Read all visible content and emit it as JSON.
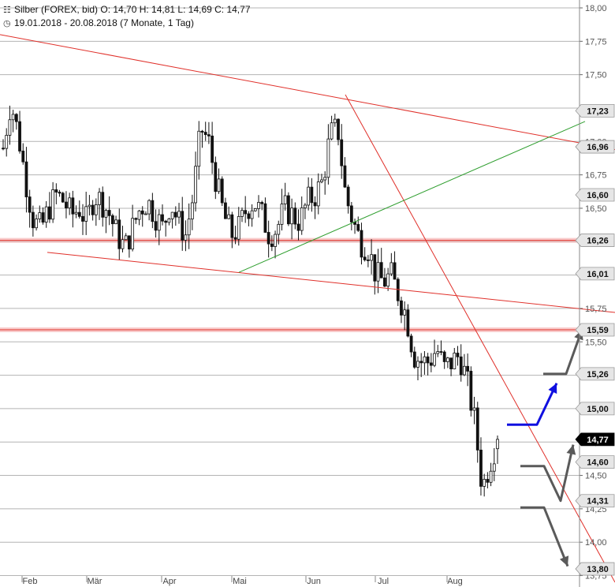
{
  "header": {
    "symbol_line": "Silber (FOREX, bid)  O: 14,70  H: 14,81  L: 14,69  C: 14,77",
    "range_line": "19.01.2018 - 20.08.2018  (7 Monate, 1 Tag)",
    "symbol_icon": "candlestick-icon",
    "range_icon": "clock-icon"
  },
  "colors": {
    "trendline": "#e0302a",
    "support_band": "#f2a0a0",
    "green_line": "#2e9e2e",
    "blue_arrow": "#1010e0",
    "gray_arrow": "#5a5a5a",
    "candle": "#111111",
    "grid": "#b4b4b4",
    "label_box": "#e6e6e6",
    "current_box": "#000000"
  },
  "chart_data": {
    "type": "candlestick",
    "title": "Silber (FOREX, bid)",
    "ylim": [
      13.7,
      18.0
    ],
    "y_axis_ticks": [
      "18,00",
      "17,75",
      "17,50",
      "17,25",
      "17,00",
      "16,75",
      "16,50",
      "16,25",
      "16,00",
      "15,75",
      "15,50",
      "15,25",
      "15,00",
      "14,75",
      "14,50",
      "14,25",
      "14,00",
      "13,75"
    ],
    "x_tick_labels": [
      "Feb",
      "Mär",
      "Apr",
      "Mai",
      "Jun",
      "Jul",
      "Aug"
    ],
    "level_labels": [
      {
        "text": "17,23",
        "value": 17.23
      },
      {
        "text": "16,96",
        "value": 16.96
      },
      {
        "text": "16,60",
        "value": 16.6
      },
      {
        "text": "16,26",
        "value": 16.26
      },
      {
        "text": "16,01",
        "value": 16.01
      },
      {
        "text": "15,59",
        "value": 15.59
      },
      {
        "text": "15,26",
        "value": 15.26
      },
      {
        "text": "15,00",
        "value": 15.0
      },
      {
        "text": "14,77",
        "value": 14.77,
        "current": true
      },
      {
        "text": "14,60",
        "value": 14.6
      },
      {
        "text": "14,31",
        "value": 14.31
      },
      {
        "text": "13,80",
        "value": 13.8
      }
    ],
    "horizontal_bands": [
      16.26,
      15.59
    ],
    "last_ohlc": {
      "open": 14.7,
      "high": 14.81,
      "low": 14.69,
      "close": 14.77
    },
    "price_path": [
      16.95,
      17.3,
      17.05,
      16.7,
      16.4,
      16.35,
      16.5,
      16.6,
      16.55,
      16.45,
      16.5,
      16.4,
      16.6,
      16.55,
      16.45,
      16.3,
      16.2,
      16.35,
      16.5,
      16.55,
      16.45,
      16.35,
      16.55,
      16.4,
      16.3,
      16.6,
      17.1,
      17.0,
      16.7,
      16.45,
      16.3,
      16.35,
      16.5,
      16.55,
      16.45,
      16.3,
      16.35,
      16.5,
      16.45,
      16.4,
      16.55,
      16.6,
      16.7,
      17.05,
      17.1,
      16.6,
      16.4,
      16.25,
      16.2,
      16.0,
      15.95,
      16.0,
      15.85,
      15.7,
      15.4,
      15.35,
      15.35,
      15.45,
      15.3,
      15.35,
      15.4,
      15.2,
      14.9,
      14.4,
      14.6,
      14.77
    ]
  }
}
